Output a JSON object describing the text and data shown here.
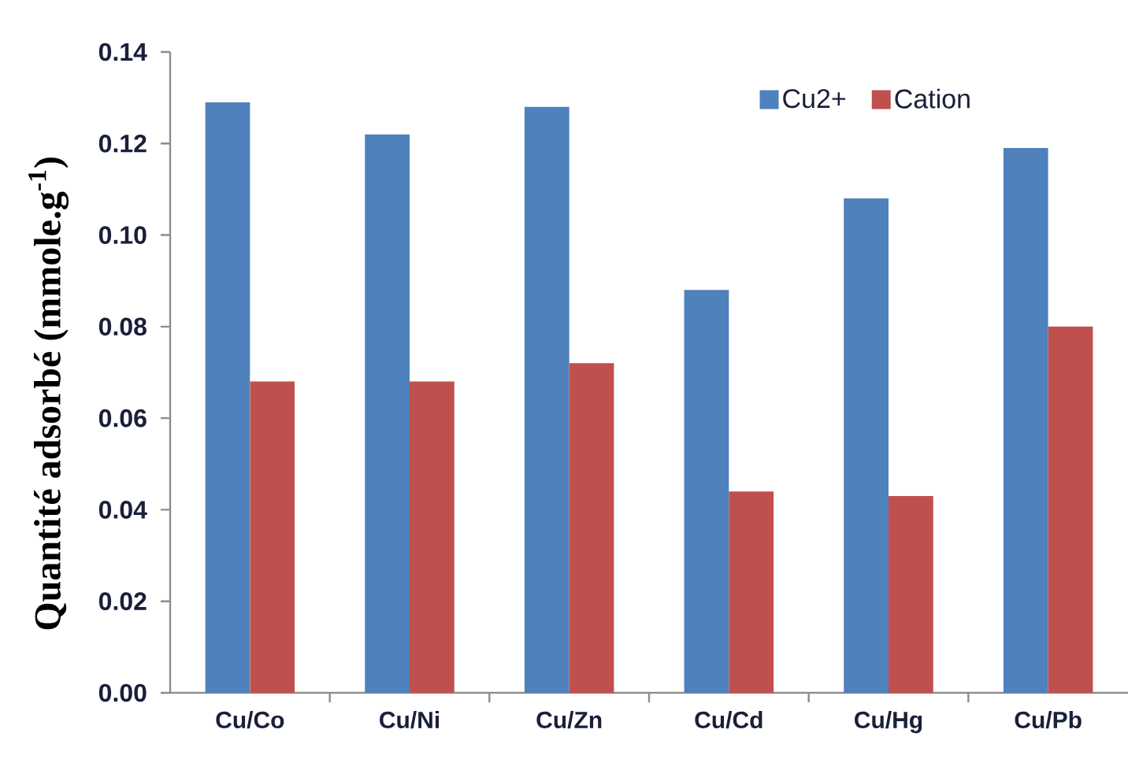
{
  "chart_data": {
    "type": "bar",
    "ylabel": "Quantité adsorbé (mmole.g$^{-1}$)",
    "categories": [
      "Cu/Co",
      "Cu/Ni",
      "Cu/Zn",
      "Cu/Cd",
      "Cu/Hg",
      "Cu/Pb"
    ],
    "series": [
      {
        "name": "Cu2+",
        "color": "#4f81bd",
        "values": [
          0.129,
          0.122,
          0.128,
          0.088,
          0.108,
          0.119
        ]
      },
      {
        "name": "Cation",
        "color": "#c0504d",
        "values": [
          0.068,
          0.068,
          0.072,
          0.044,
          0.043,
          0.08
        ]
      }
    ],
    "ylim": [
      0,
      0.14
    ],
    "yticks": [
      {
        "value": 0,
        "label": "0.00"
      },
      {
        "value": 0.02,
        "label": "0.02"
      },
      {
        "value": 0.04,
        "label": "0.04"
      },
      {
        "value": 0.06,
        "label": "0.06"
      },
      {
        "value": 0.08,
        "label": "0.08"
      },
      {
        "value": 0.1,
        "label": "0.10"
      },
      {
        "value": 0.12,
        "label": "0.12"
      },
      {
        "value": 0.14,
        "label": "0.14"
      }
    ],
    "legend": "top right"
  }
}
